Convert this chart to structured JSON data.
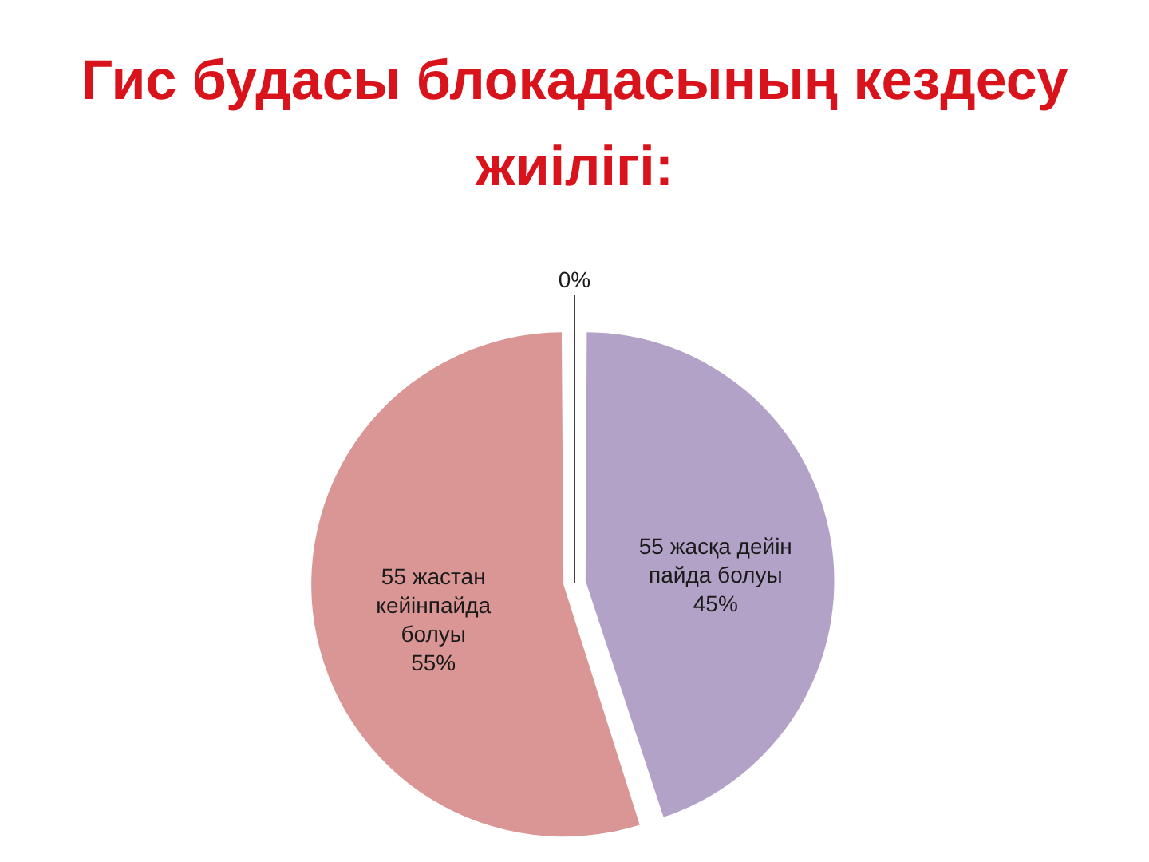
{
  "chart_data": {
    "type": "pie",
    "title": "Гис будасы блокадасының кездесу жиілігі:",
    "categories": [
      "55 жасқа дейін пайда болуы",
      "55 жастан кейінпайда болуы",
      null
    ],
    "values": [
      45,
      55,
      0
    ],
    "colors": [
      "#b3a2c7",
      "#d99694",
      "#4f81bd"
    ],
    "value_labels": [
      "45%",
      "55%",
      "0%"
    ],
    "legend": false
  }
}
